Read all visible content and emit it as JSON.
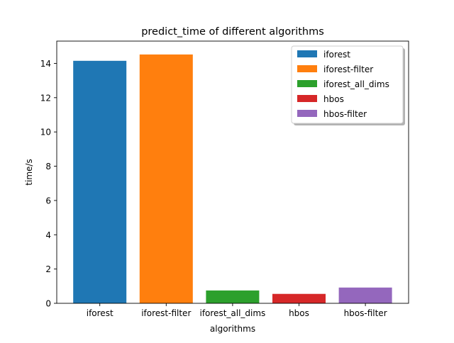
{
  "chart_data": {
    "type": "bar",
    "title": "predict_time of different algorithms",
    "xlabel": "algorithms",
    "ylabel": "time/s",
    "categories": [
      "iforest",
      "iforest-filter",
      "iforest_all_dims",
      "hbos",
      "hbos-filter"
    ],
    "values": [
      14.15,
      14.52,
      0.75,
      0.55,
      0.92
    ],
    "colors": [
      "#1f77b4",
      "#ff7f0e",
      "#2ca02c",
      "#d62728",
      "#9467bd"
    ],
    "ylim": [
      0,
      15.3
    ],
    "yticks": [
      "0",
      "2",
      "4",
      "6",
      "8",
      "10",
      "12",
      "14"
    ],
    "grid": false,
    "legend": {
      "placement": "top-right",
      "entries": [
        "iforest",
        "iforest-filter",
        "iforest_all_dims",
        "hbos",
        "hbos-filter"
      ]
    }
  }
}
